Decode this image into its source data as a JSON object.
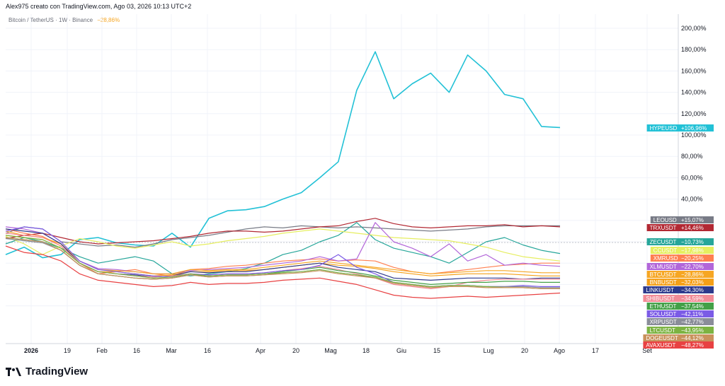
{
  "header": {
    "attribution": "Alex975 creato con TradingView.com, Ago 03, 2026 10:13 UTC+2",
    "symbol": "Bitcoin / TetherUS · 1W · Binance",
    "symbol_change": "−28,86%"
  },
  "brand": {
    "name": "TradingView"
  },
  "chart_data": {
    "type": "line",
    "title": "",
    "xlabel": "",
    "ylabel": "",
    "y_unit": "%",
    "ylim": [
      -60,
      215
    ],
    "y_ticks": [
      40,
      60,
      80,
      100,
      120,
      140,
      160,
      180,
      200
    ],
    "y_tick_labels": [
      "40,00%",
      "60,00%",
      "80,00%",
      "100,00%",
      "120,00%",
      "140,00%",
      "160,00%",
      "180,00%",
      "200,00%"
    ],
    "x_ticks": [
      "2026",
      "19",
      "Feb",
      "16",
      "Mar",
      "16",
      "Apr",
      "20",
      "Mag",
      "18",
      "Giu",
      "15",
      "Lug",
      "20",
      "Ago",
      "17",
      "Set"
    ],
    "x_tick_bold": [
      "2026"
    ],
    "x": [
      "2026-01-05",
      "2026-01-12",
      "2026-01-19",
      "2026-01-26",
      "2026-02-02",
      "2026-02-09",
      "2026-02-16",
      "2026-02-23",
      "2026-03-02",
      "2026-03-09",
      "2026-03-16",
      "2026-03-23",
      "2026-03-30",
      "2026-04-06",
      "2026-04-13",
      "2026-04-20",
      "2026-04-27",
      "2026-05-04",
      "2026-05-11",
      "2026-05-18",
      "2026-05-25",
      "2026-06-01",
      "2026-06-08",
      "2026-06-15",
      "2026-06-22",
      "2026-06-29",
      "2026-07-06",
      "2026-07-13",
      "2026-07-20",
      "2026-07-27",
      "2026-08-03"
    ],
    "grid": true,
    "legend": "right",
    "series": [
      {
        "name": "HYPEUSD",
        "label": "+106,96%",
        "color": "#22c1d6",
        "values": [
          -12,
          -5,
          -15,
          -12,
          2,
          4,
          -1,
          -3,
          -4,
          8,
          -5,
          22,
          29,
          30,
          33,
          40,
          46,
          60,
          75,
          142,
          178,
          134,
          148,
          158,
          140,
          175,
          160,
          138,
          134,
          108,
          107
        ]
      },
      {
        "name": "LEOUSD",
        "label": "+15,07%",
        "color": "#787b86",
        "values": [
          8,
          14,
          12,
          0,
          -2,
          -4,
          -3,
          -5,
          -2,
          2,
          4,
          6,
          9,
          12,
          14,
          13,
          15,
          14,
          13,
          14,
          13,
          12,
          11,
          10,
          11,
          12,
          14,
          15,
          15,
          15,
          15
        ]
      },
      {
        "name": "TRXUSDT",
        "label": "+14,46%",
        "color": "#b22833",
        "values": [
          3,
          6,
          8,
          4,
          0,
          -2,
          -1,
          0,
          1,
          3,
          5,
          8,
          10,
          10,
          9,
          10,
          12,
          14,
          15,
          19,
          22,
          17,
          14,
          13,
          14,
          15,
          15,
          16,
          14,
          15,
          14
        ]
      },
      {
        "name": "ZECUSDT",
        "label": "−10,73%",
        "color": "#26a69a",
        "values": [
          -2,
          4,
          0,
          -6,
          -14,
          -20,
          -17,
          -14,
          -18,
          -30,
          -32,
          -30,
          -28,
          -25,
          -20,
          -12,
          -8,
          0,
          6,
          18,
          2,
          -6,
          -10,
          -14,
          -20,
          -10,
          0,
          4,
          -3,
          -8,
          -11
        ]
      },
      {
        "name": "CCUSDT",
        "label": "−17,98%",
        "color": "#e6ee60",
        "values": [
          5,
          -2,
          -12,
          -4,
          3,
          0,
          -4,
          -6,
          -3,
          0,
          -4,
          -2,
          1,
          3,
          5,
          8,
          10,
          12,
          10,
          8,
          6,
          4,
          3,
          2,
          1,
          -2,
          -5,
          -10,
          -14,
          -16,
          -18
        ]
      },
      {
        "name": "XMRUSD",
        "label": "−20,25%",
        "color": "#ff7f50",
        "values": [
          12,
          8,
          5,
          -4,
          -20,
          -30,
          -28,
          -26,
          -30,
          -32,
          -26,
          -25,
          -23,
          -22,
          -20,
          -18,
          -17,
          -16,
          -18,
          -17,
          -18,
          -24,
          -28,
          -30,
          -28,
          -26,
          -24,
          -22,
          -21,
          -20,
          -20
        ]
      },
      {
        "name": "XLMUSDT",
        "label": "−22,70%",
        "color": "#b266d9",
        "values": [
          14,
          12,
          8,
          -2,
          -18,
          -25,
          -26,
          -28,
          -30,
          -30,
          -27,
          -26,
          -25,
          -24,
          -22,
          -20,
          -18,
          -14,
          -18,
          -16,
          18,
          0,
          -6,
          -14,
          -2,
          -18,
          -12,
          -22,
          -20,
          -22,
          -23
        ]
      },
      {
        "name": "BTCUSDT",
        "label": "−28,86%",
        "color": "#f6a623",
        "values": [
          10,
          6,
          4,
          -2,
          -18,
          -26,
          -27,
          -28,
          -30,
          -30,
          -26,
          -27,
          -26,
          -26,
          -24,
          -22,
          -20,
          -18,
          -20,
          -22,
          -24,
          -26,
          -28,
          -30,
          -29,
          -28,
          -27,
          -27,
          -28,
          -29,
          -29
        ]
      },
      {
        "name": "BNBUSDT",
        "label": "−32,03%",
        "color": "#f5a018",
        "values": [
          6,
          4,
          2,
          -6,
          -20,
          -28,
          -28,
          -30,
          -32,
          -31,
          -28,
          -28,
          -27,
          -27,
          -26,
          -24,
          -22,
          -20,
          -22,
          -23,
          -25,
          -28,
          -30,
          -32,
          -31,
          -30,
          -30,
          -30,
          -31,
          -32,
          -32
        ]
      },
      {
        "name": "LINKUSDT",
        "label": "−34,30%",
        "color": "#2e3a8c",
        "values": [
          12,
          10,
          8,
          -2,
          -20,
          -28,
          -30,
          -31,
          -33,
          -32,
          -28,
          -29,
          -28,
          -28,
          -26,
          -24,
          -22,
          -20,
          -24,
          -26,
          -28,
          -34,
          -35,
          -36,
          -35,
          -34,
          -34,
          -34,
          -35,
          -34,
          -34
        ]
      },
      {
        "name": "SHIBUSDT",
        "label": "−34,59%",
        "color": "#f28b96",
        "values": [
          8,
          6,
          4,
          -4,
          -20,
          -28,
          -30,
          -32,
          -33,
          -32,
          -30,
          -31,
          -30,
          -30,
          -29,
          -27,
          -25,
          -23,
          -26,
          -30,
          -34,
          -40,
          -42,
          -44,
          -42,
          -38,
          -36,
          -35,
          -35,
          -35,
          -35
        ]
      },
      {
        "name": "ETHUSDT",
        "label": "−37,54%",
        "color": "#43a047",
        "values": [
          4,
          2,
          0,
          -8,
          -22,
          -30,
          -32,
          -34,
          -35,
          -34,
          -31,
          -32,
          -31,
          -31,
          -30,
          -28,
          -26,
          -24,
          -27,
          -29,
          -32,
          -36,
          -38,
          -40,
          -39,
          -38,
          -38,
          -37,
          -37,
          -38,
          -38
        ]
      },
      {
        "name": "SOLUSDT",
        "label": "−42,11%",
        "color": "#7b5be6",
        "values": [
          10,
          14,
          12,
          0,
          -18,
          -26,
          -28,
          -30,
          -32,
          -33,
          -30,
          -31,
          -30,
          -30,
          -29,
          -27,
          -26,
          -22,
          -12,
          -24,
          -30,
          -38,
          -40,
          -42,
          -41,
          -41,
          -42,
          -42,
          -41,
          -42,
          -42
        ]
      },
      {
        "name": "XRPUSDT",
        "label": "−42,77%",
        "color": "#8a8d99",
        "values": [
          3,
          1,
          -1,
          -8,
          -22,
          -30,
          -32,
          -34,
          -35,
          -34,
          -31,
          -33,
          -32,
          -32,
          -31,
          -29,
          -28,
          -26,
          -29,
          -31,
          -34,
          -38,
          -40,
          -42,
          -41,
          -41,
          -42,
          -42,
          -42,
          -43,
          -43
        ]
      },
      {
        "name": "LTCUSDT",
        "label": "−43,95%",
        "color": "#7cb342",
        "values": [
          6,
          4,
          2,
          -6,
          -20,
          -28,
          -30,
          -32,
          -34,
          -33,
          -30,
          -32,
          -31,
          -31,
          -30,
          -29,
          -28,
          -26,
          -29,
          -31,
          -33,
          -38,
          -40,
          -42,
          -41,
          -41,
          -42,
          -43,
          -43,
          -44,
          -44
        ]
      },
      {
        "name": "DOGEUSDT",
        "label": "−44,12%",
        "color": "#c9915c",
        "values": [
          4,
          2,
          0,
          -8,
          -22,
          -30,
          -32,
          -34,
          -35,
          -34,
          -31,
          -33,
          -32,
          -32,
          -31,
          -30,
          -29,
          -27,
          -30,
          -32,
          -34,
          -39,
          -41,
          -43,
          -42,
          -42,
          -43,
          -43,
          -43,
          -44,
          -44
        ]
      },
      {
        "name": "AVAXUSDT",
        "label": "−48,27%",
        "color": "#e84142",
        "values": [
          -4,
          -10,
          -12,
          -18,
          -30,
          -36,
          -38,
          -40,
          -42,
          -41,
          -38,
          -40,
          -39,
          -39,
          -38,
          -36,
          -35,
          -34,
          -37,
          -40,
          -45,
          -50,
          -52,
          -53,
          -52,
          -51,
          -52,
          -51,
          -50,
          -49,
          -48
        ]
      }
    ]
  }
}
